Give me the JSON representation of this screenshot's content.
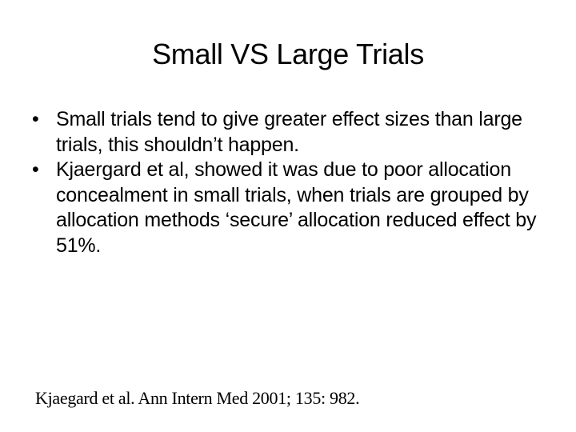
{
  "slide": {
    "title": "Small VS Large Trials",
    "bullets": [
      {
        "marker": "•",
        "text": "Small trials tend to give greater effect sizes than large trials, this shouldn’t happen."
      },
      {
        "marker": "•",
        "text": "Kjaergard et al, showed it was due to poor allocation concealment in small trials, when trials are grouped by allocation methods ‘secure’ allocation reduced effect by 51%."
      }
    ],
    "reference": "Kjaegard et al.  Ann Intern Med 2001; 135: 982."
  }
}
